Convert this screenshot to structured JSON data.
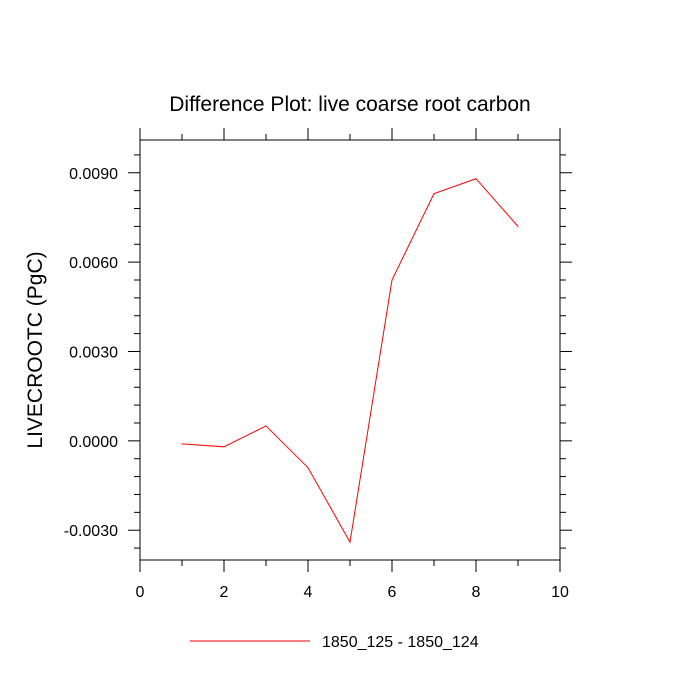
{
  "chart_data": {
    "type": "line",
    "title": "Difference Plot: live coarse root carbon",
    "xlabel": "",
    "ylabel": "LIVECROOTC  (PgC)",
    "xlim": [
      0,
      10
    ],
    "ylim": [
      -0.004,
      0.0101
    ],
    "x_ticks": [
      0,
      2,
      4,
      6,
      8,
      10
    ],
    "x_tick_labels": [
      "0",
      "2",
      "4",
      "6",
      "8",
      "10"
    ],
    "y_ticks": [
      -0.003,
      0.0,
      0.003,
      0.006,
      0.009
    ],
    "y_tick_labels": [
      "-0.0030",
      "0.0000",
      "0.0030",
      "0.0060",
      "0.0090"
    ],
    "grid": false,
    "legend_position": "bottom-center",
    "series": [
      {
        "name": "1850_125 - 1850_124",
        "color": "#ff0000",
        "x": [
          1,
          2,
          3,
          4,
          5,
          6,
          7,
          8,
          9
        ],
        "values": [
          -0.0001,
          -0.0002,
          0.0005,
          -0.0009,
          -0.0034,
          0.0054,
          0.0083,
          0.0088,
          0.0072
        ]
      }
    ]
  }
}
